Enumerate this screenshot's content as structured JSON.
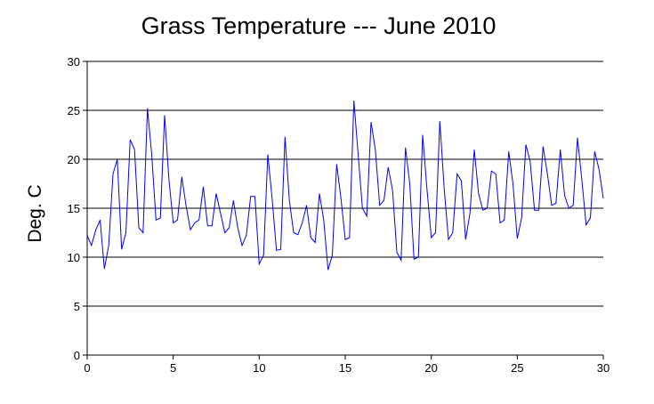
{
  "chart_data": {
    "type": "line",
    "title": "Grass Temperature --- June 2010",
    "xlabel": "",
    "ylabel": "Deg. C",
    "xlim": [
      0,
      30
    ],
    "ylim": [
      0,
      30
    ],
    "xticks": [
      "0",
      "5",
      "10",
      "15",
      "20",
      "25",
      "30"
    ],
    "yticks": [
      "0",
      "5",
      "10",
      "15",
      "20",
      "25",
      "30"
    ],
    "grid": "horizontal",
    "series_color": "#0000ff",
    "series": [
      {
        "x": [
          0,
          0.25,
          0.5,
          0.75,
          1.0,
          1.25,
          1.5,
          1.75,
          2.0,
          2.25,
          2.5,
          2.75,
          3.0,
          3.25,
          3.5,
          3.75,
          4.0,
          4.25,
          4.5,
          4.75,
          5.0,
          5.25,
          5.5,
          5.75,
          6.0,
          6.25,
          6.5,
          6.75,
          7.0,
          7.25,
          7.5,
          7.75,
          8.0,
          8.25,
          8.5,
          8.75,
          9.0,
          9.25,
          9.5,
          9.75,
          10.0,
          10.25,
          10.5,
          10.75,
          11.0,
          11.25,
          11.5,
          11.75,
          12.0,
          12.25,
          12.5,
          12.75,
          13.0,
          13.25,
          13.5,
          13.75,
          14.0,
          14.25,
          14.5,
          14.75,
          15.0,
          15.25,
          15.5,
          15.75,
          16.0,
          16.25,
          16.5,
          16.75,
          17.0,
          17.25,
          17.5,
          17.75,
          18.0,
          18.25,
          18.5,
          18.75,
          19.0,
          19.25,
          19.5,
          19.75,
          20.0,
          20.25,
          20.5,
          20.75,
          21.0,
          21.25,
          21.5,
          21.75,
          22.0,
          22.25,
          22.5,
          22.75,
          23.0,
          23.25,
          23.5,
          23.75,
          24.0,
          24.25,
          24.5,
          24.75,
          25.0,
          25.25,
          25.5,
          25.75,
          26.0,
          26.25,
          26.5,
          26.75,
          27.0,
          27.25,
          27.5,
          27.75,
          28.0,
          28.25,
          28.5,
          28.75,
          29.0,
          29.25,
          29.5,
          29.75,
          30.0
        ],
        "values": [
          12.2,
          11.2,
          12.8,
          13.8,
          8.8,
          11.2,
          18.5,
          20.0,
          10.8,
          12.5,
          22.0,
          21.0,
          13.0,
          12.5,
          25.2,
          20.5,
          13.8,
          14.0,
          24.5,
          18.0,
          13.5,
          13.8,
          18.2,
          15.2,
          12.8,
          13.5,
          13.8,
          17.2,
          13.2,
          13.2,
          16.5,
          14.5,
          12.5,
          13.0,
          15.8,
          13.0,
          11.2,
          12.2,
          16.2,
          16.2,
          9.3,
          10.2,
          20.5,
          16.0,
          10.7,
          10.8,
          22.3,
          15.8,
          12.5,
          12.3,
          13.5,
          15.3,
          12.0,
          11.5,
          16.5,
          13.8,
          8.7,
          10.2,
          19.5,
          16.0,
          11.8,
          12.0,
          26.0,
          20.5,
          15.0,
          14.2,
          23.8,
          21.0,
          15.3,
          15.8,
          19.2,
          16.8,
          10.5,
          9.7,
          21.2,
          17.5,
          9.8,
          10.0,
          22.5,
          17.0,
          12.0,
          12.5,
          23.9,
          17.0,
          11.8,
          12.5,
          18.5,
          17.8,
          11.8,
          14.5,
          21.0,
          16.5,
          14.8,
          15.0,
          18.8,
          18.5,
          13.5,
          13.8,
          20.8,
          17.5,
          11.9,
          14.0,
          21.5,
          19.8,
          14.8,
          14.8,
          21.3,
          18.5,
          15.3,
          15.5,
          21.0,
          16.3,
          15.0,
          15.3,
          22.2,
          18.0,
          13.3,
          14.0,
          20.8,
          19.0,
          16.0
        ]
      }
    ]
  }
}
